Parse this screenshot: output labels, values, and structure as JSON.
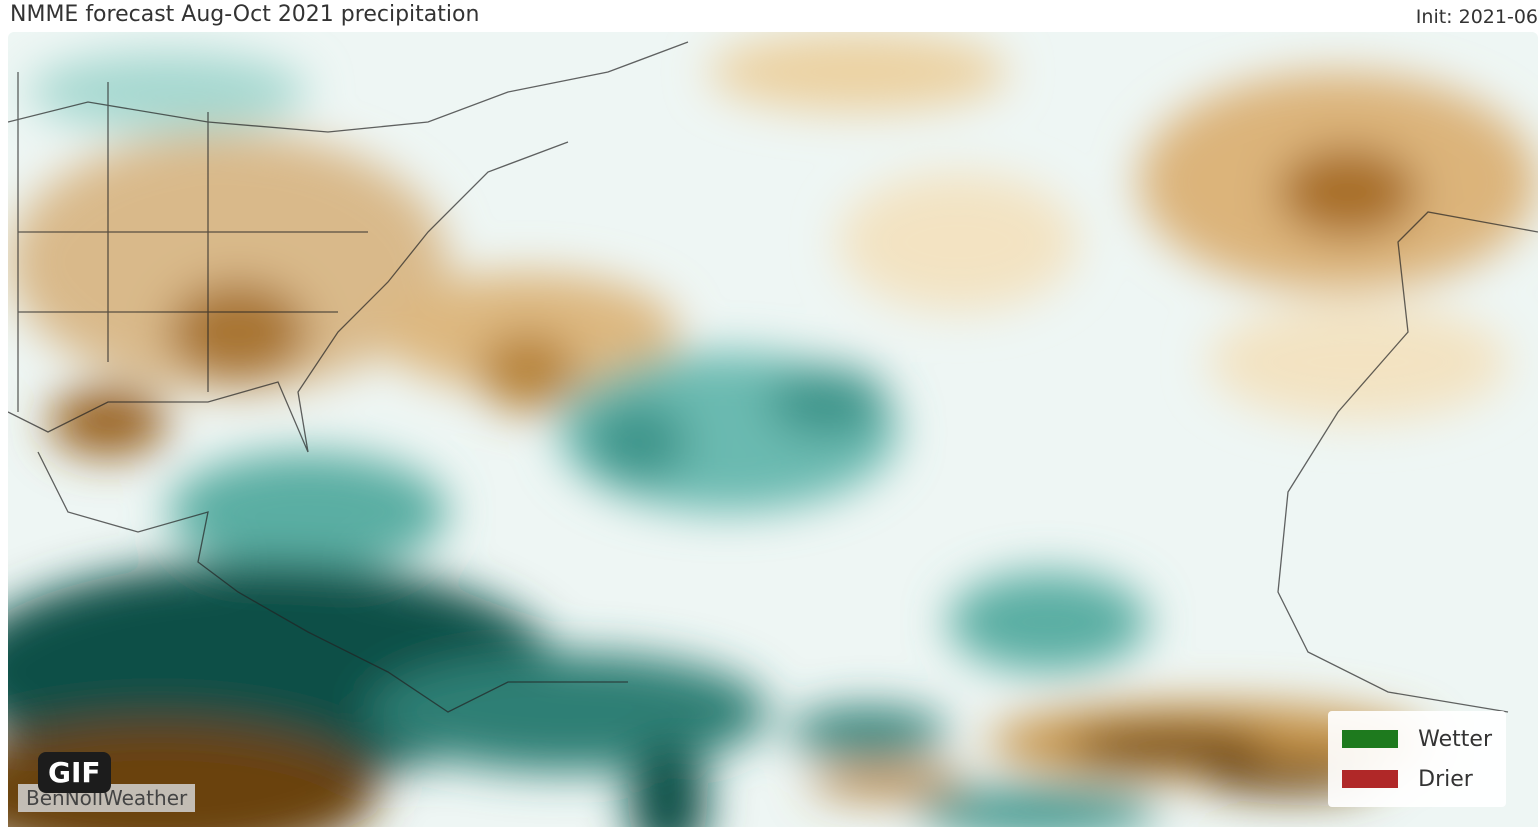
{
  "header": {
    "title": "NMME forecast Aug-Oct 2021 precipitation",
    "init": "Init: 2021-06"
  },
  "legend": [
    {
      "label": "Wetter",
      "color": "#1e7a1e"
    },
    {
      "label": "Drier",
      "color": "#b02828"
    }
  ],
  "badge": {
    "label": "GIF"
  },
  "watermark": {
    "text": "BenNollWeather"
  },
  "colors": {
    "wet_dark": "#0f4f47",
    "wet_mid": "#5fb3a8",
    "wet_light": "#c4e6e1",
    "dry_dark": "#6b4208",
    "dry_mid": "#c79a55",
    "dry_light": "#f3e3c2"
  }
}
